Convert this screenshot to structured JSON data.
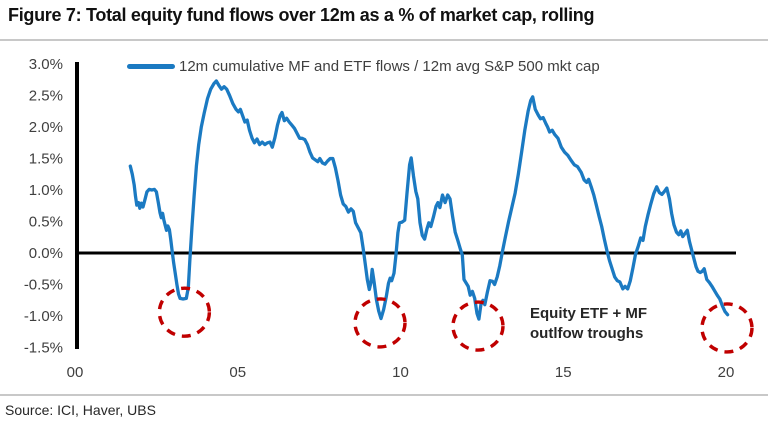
{
  "title": "Figure 7: Total equity fund flows over 12m as a % of market cap, rolling",
  "source": "Source: ICI, Haver, UBS",
  "annotation": {
    "line1": "Equity ETF + MF",
    "line2": "outlfow troughs"
  },
  "colors": {
    "line": "#1B7AC2",
    "circle": "#C00000",
    "axis": "#000000",
    "tick_text": "#3F3F3F",
    "rule": "#C8C8C8"
  },
  "chart_data": {
    "type": "line",
    "title": "Total equity fund flows over 12m as a % of market cap, rolling",
    "legend": "12m cumulative MF and ETF flows  / 12m avg S&P 500 mkt cap",
    "xlabel": "",
    "ylabel": "",
    "xlim": [
      0,
      20.3
    ],
    "ylim": [
      -1.5,
      3.0
    ],
    "grid": false,
    "legend_position": "top",
    "zero_line": true,
    "xticks": {
      "values": [
        0,
        5,
        10,
        15,
        20
      ],
      "labels": [
        "00",
        "05",
        "10",
        "15",
        "20"
      ]
    },
    "yticks": {
      "values": [
        3.0,
        2.5,
        2.0,
        1.5,
        1.0,
        0.5,
        0.0,
        -0.5,
        -1.0,
        -1.5
      ],
      "labels": [
        "3.0%",
        "2.5%",
        "2.0%",
        "1.5%",
        "1.0%",
        "0.5%",
        "0.0%",
        "-0.5%",
        "-1.0%",
        "-1.5%"
      ]
    },
    "series": [
      {
        "name": "12m cumulative MF and ETF flows / 12m avg S&P 500 mkt cap",
        "points": [
          [
            1.7,
            1.38
          ],
          [
            1.76,
            1.25
          ],
          [
            1.82,
            1.08
          ],
          [
            1.86,
            0.9
          ],
          [
            1.9,
            0.76
          ],
          [
            1.95,
            0.8
          ],
          [
            1.99,
            0.71
          ],
          [
            2.04,
            0.79
          ],
          [
            2.09,
            0.73
          ],
          [
            2.15,
            0.85
          ],
          [
            2.21,
            0.97
          ],
          [
            2.28,
            1.01
          ],
          [
            2.36,
            1.0
          ],
          [
            2.44,
            1.01
          ],
          [
            2.5,
            0.97
          ],
          [
            2.56,
            0.8
          ],
          [
            2.61,
            0.64
          ],
          [
            2.65,
            0.56
          ],
          [
            2.69,
            0.63
          ],
          [
            2.73,
            0.52
          ],
          [
            2.77,
            0.44
          ],
          [
            2.81,
            0.36
          ],
          [
            2.85,
            0.43
          ],
          [
            2.9,
            0.37
          ],
          [
            2.94,
            0.22
          ],
          [
            2.98,
            0.05
          ],
          [
            3.03,
            -0.15
          ],
          [
            3.08,
            -0.33
          ],
          [
            3.13,
            -0.5
          ],
          [
            3.18,
            -0.65
          ],
          [
            3.23,
            -0.72
          ],
          [
            3.32,
            -0.73
          ],
          [
            3.42,
            -0.72
          ],
          [
            3.48,
            -0.55
          ],
          [
            3.53,
            -0.1
          ],
          [
            3.59,
            0.4
          ],
          [
            3.66,
            0.9
          ],
          [
            3.73,
            1.38
          ],
          [
            3.8,
            1.72
          ],
          [
            3.88,
            2.0
          ],
          [
            3.97,
            2.22
          ],
          [
            4.07,
            2.45
          ],
          [
            4.17,
            2.6
          ],
          [
            4.27,
            2.69
          ],
          [
            4.34,
            2.73
          ],
          [
            4.42,
            2.66
          ],
          [
            4.5,
            2.6
          ],
          [
            4.58,
            2.64
          ],
          [
            4.66,
            2.6
          ],
          [
            4.75,
            2.5
          ],
          [
            4.85,
            2.37
          ],
          [
            4.95,
            2.28
          ],
          [
            5.02,
            2.24
          ],
          [
            5.08,
            2.28
          ],
          [
            5.15,
            2.18
          ],
          [
            5.22,
            2.08
          ],
          [
            5.29,
            2.11
          ],
          [
            5.36,
            1.95
          ],
          [
            5.44,
            1.82
          ],
          [
            5.51,
            1.75
          ],
          [
            5.59,
            1.81
          ],
          [
            5.67,
            1.72
          ],
          [
            5.75,
            1.76
          ],
          [
            5.83,
            1.72
          ],
          [
            5.91,
            1.75
          ],
          [
            5.99,
            1.76
          ],
          [
            6.06,
            1.68
          ],
          [
            6.14,
            1.83
          ],
          [
            6.22,
            2.03
          ],
          [
            6.3,
            2.18
          ],
          [
            6.36,
            2.23
          ],
          [
            6.43,
            2.1
          ],
          [
            6.5,
            2.14
          ],
          [
            6.58,
            2.08
          ],
          [
            6.66,
            2.03
          ],
          [
            6.74,
            1.98
          ],
          [
            6.82,
            1.9
          ],
          [
            6.9,
            1.82
          ],
          [
            6.98,
            1.82
          ],
          [
            7.06,
            1.8
          ],
          [
            7.14,
            1.72
          ],
          [
            7.22,
            1.6
          ],
          [
            7.3,
            1.51
          ],
          [
            7.38,
            1.48
          ],
          [
            7.46,
            1.45
          ],
          [
            7.52,
            1.5
          ],
          [
            7.6,
            1.43
          ],
          [
            7.68,
            1.41
          ],
          [
            7.76,
            1.46
          ],
          [
            7.84,
            1.5
          ],
          [
            7.92,
            1.5
          ],
          [
            8.0,
            1.35
          ],
          [
            8.08,
            1.15
          ],
          [
            8.16,
            0.92
          ],
          [
            8.24,
            0.78
          ],
          [
            8.32,
            0.74
          ],
          [
            8.4,
            0.65
          ],
          [
            8.48,
            0.7
          ],
          [
            8.55,
            0.66
          ],
          [
            8.62,
            0.48
          ],
          [
            8.7,
            0.4
          ],
          [
            8.78,
            0.32
          ],
          [
            8.85,
            0.08
          ],
          [
            8.92,
            -0.18
          ],
          [
            8.98,
            -0.42
          ],
          [
            9.04,
            -0.58
          ],
          [
            9.09,
            -0.47
          ],
          [
            9.13,
            -0.26
          ],
          [
            9.19,
            -0.46
          ],
          [
            9.26,
            -0.74
          ],
          [
            9.33,
            -0.92
          ],
          [
            9.4,
            -1.04
          ],
          [
            9.48,
            -0.9
          ],
          [
            9.56,
            -0.7
          ],
          [
            9.63,
            -0.48
          ],
          [
            9.68,
            -0.4
          ],
          [
            9.73,
            -0.44
          ],
          [
            9.8,
            -0.32
          ],
          [
            9.86,
            -0.04
          ],
          [
            9.92,
            0.32
          ],
          [
            9.97,
            0.48
          ],
          [
            10.05,
            0.49
          ],
          [
            10.13,
            0.52
          ],
          [
            10.2,
            0.95
          ],
          [
            10.28,
            1.4
          ],
          [
            10.33,
            1.51
          ],
          [
            10.4,
            1.22
          ],
          [
            10.47,
            0.98
          ],
          [
            10.53,
            0.86
          ],
          [
            10.6,
            0.48
          ],
          [
            10.67,
            0.28
          ],
          [
            10.74,
            0.22
          ],
          [
            10.81,
            0.38
          ],
          [
            10.87,
            0.48
          ],
          [
            10.93,
            0.42
          ],
          [
            11.01,
            0.57
          ],
          [
            11.09,
            0.74
          ],
          [
            11.15,
            0.8
          ],
          [
            11.21,
            0.72
          ],
          [
            11.29,
            0.92
          ],
          [
            11.37,
            0.8
          ],
          [
            11.45,
            0.92
          ],
          [
            11.52,
            0.86
          ],
          [
            11.6,
            0.58
          ],
          [
            11.68,
            0.33
          ],
          [
            11.76,
            0.2
          ],
          [
            11.84,
            0.06
          ],
          [
            11.9,
            -0.03
          ],
          [
            11.95,
            -0.42
          ],
          [
            12.02,
            -0.48
          ],
          [
            12.08,
            -0.53
          ],
          [
            12.14,
            -0.67
          ],
          [
            12.21,
            -0.61
          ],
          [
            12.28,
            -0.72
          ],
          [
            12.35,
            -0.96
          ],
          [
            12.41,
            -1.05
          ],
          [
            12.47,
            -0.82
          ],
          [
            12.53,
            -0.75
          ],
          [
            12.59,
            -0.82
          ],
          [
            12.67,
            -0.62
          ],
          [
            12.75,
            -0.44
          ],
          [
            12.83,
            -0.45
          ],
          [
            12.89,
            -0.5
          ],
          [
            12.97,
            -0.38
          ],
          [
            13.05,
            -0.2
          ],
          [
            13.13,
            0.02
          ],
          [
            13.22,
            0.25
          ],
          [
            13.32,
            0.5
          ],
          [
            13.42,
            0.72
          ],
          [
            13.52,
            0.95
          ],
          [
            13.62,
            1.25
          ],
          [
            13.72,
            1.6
          ],
          [
            13.82,
            1.95
          ],
          [
            13.92,
            2.25
          ],
          [
            14.0,
            2.42
          ],
          [
            14.06,
            2.48
          ],
          [
            14.14,
            2.28
          ],
          [
            14.23,
            2.19
          ],
          [
            14.3,
            2.13
          ],
          [
            14.38,
            2.15
          ],
          [
            14.46,
            2.06
          ],
          [
            14.52,
            2.0
          ],
          [
            14.58,
            1.92
          ],
          [
            14.66,
            1.95
          ],
          [
            14.74,
            1.88
          ],
          [
            14.84,
            1.82
          ],
          [
            14.94,
            1.68
          ],
          [
            15.04,
            1.6
          ],
          [
            15.14,
            1.55
          ],
          [
            15.24,
            1.47
          ],
          [
            15.34,
            1.4
          ],
          [
            15.44,
            1.37
          ],
          [
            15.55,
            1.28
          ],
          [
            15.64,
            1.16
          ],
          [
            15.72,
            1.12
          ],
          [
            15.78,
            1.17
          ],
          [
            15.86,
            1.05
          ],
          [
            15.94,
            0.92
          ],
          [
            16.02,
            0.75
          ],
          [
            16.1,
            0.58
          ],
          [
            16.18,
            0.42
          ],
          [
            16.26,
            0.22
          ],
          [
            16.34,
            0.04
          ],
          [
            16.42,
            -0.12
          ],
          [
            16.5,
            -0.25
          ],
          [
            16.58,
            -0.38
          ],
          [
            16.66,
            -0.44
          ],
          [
            16.74,
            -0.46
          ],
          [
            16.83,
            -0.57
          ],
          [
            16.9,
            -0.53
          ],
          [
            16.98,
            -0.57
          ],
          [
            17.06,
            -0.44
          ],
          [
            17.14,
            -0.24
          ],
          [
            17.22,
            -0.02
          ],
          [
            17.3,
            0.1
          ],
          [
            17.38,
            0.24
          ],
          [
            17.45,
            0.2
          ],
          [
            17.52,
            0.42
          ],
          [
            17.6,
            0.6
          ],
          [
            17.68,
            0.76
          ],
          [
            17.78,
            0.94
          ],
          [
            17.87,
            1.05
          ],
          [
            17.95,
            0.96
          ],
          [
            18.03,
            0.93
          ],
          [
            18.11,
            0.98
          ],
          [
            18.18,
            1.03
          ],
          [
            18.26,
            0.86
          ],
          [
            18.33,
            0.63
          ],
          [
            18.4,
            0.45
          ],
          [
            18.48,
            0.33
          ],
          [
            18.55,
            0.29
          ],
          [
            18.61,
            0.35
          ],
          [
            18.67,
            0.26
          ],
          [
            18.74,
            0.31
          ],
          [
            18.81,
            0.36
          ],
          [
            18.88,
            0.18
          ],
          [
            18.95,
            0.04
          ],
          [
            19.02,
            -0.1
          ],
          [
            19.08,
            -0.22
          ],
          [
            19.14,
            -0.29
          ],
          [
            19.21,
            -0.31
          ],
          [
            19.27,
            -0.29
          ],
          [
            19.33,
            -0.25
          ],
          [
            19.41,
            -0.42
          ],
          [
            19.49,
            -0.47
          ],
          [
            19.57,
            -0.53
          ],
          [
            19.65,
            -0.6
          ],
          [
            19.73,
            -0.67
          ],
          [
            19.81,
            -0.73
          ],
          [
            19.89,
            -0.84
          ],
          [
            19.97,
            -0.93
          ],
          [
            20.05,
            -0.98
          ]
        ]
      }
    ],
    "trough_circles": [
      {
        "x": 3.36,
        "y": -0.94
      },
      {
        "x": 9.37,
        "y": -1.11
      },
      {
        "x": 12.38,
        "y": -1.16
      },
      {
        "x": 20.03,
        "y": -1.19
      }
    ]
  }
}
